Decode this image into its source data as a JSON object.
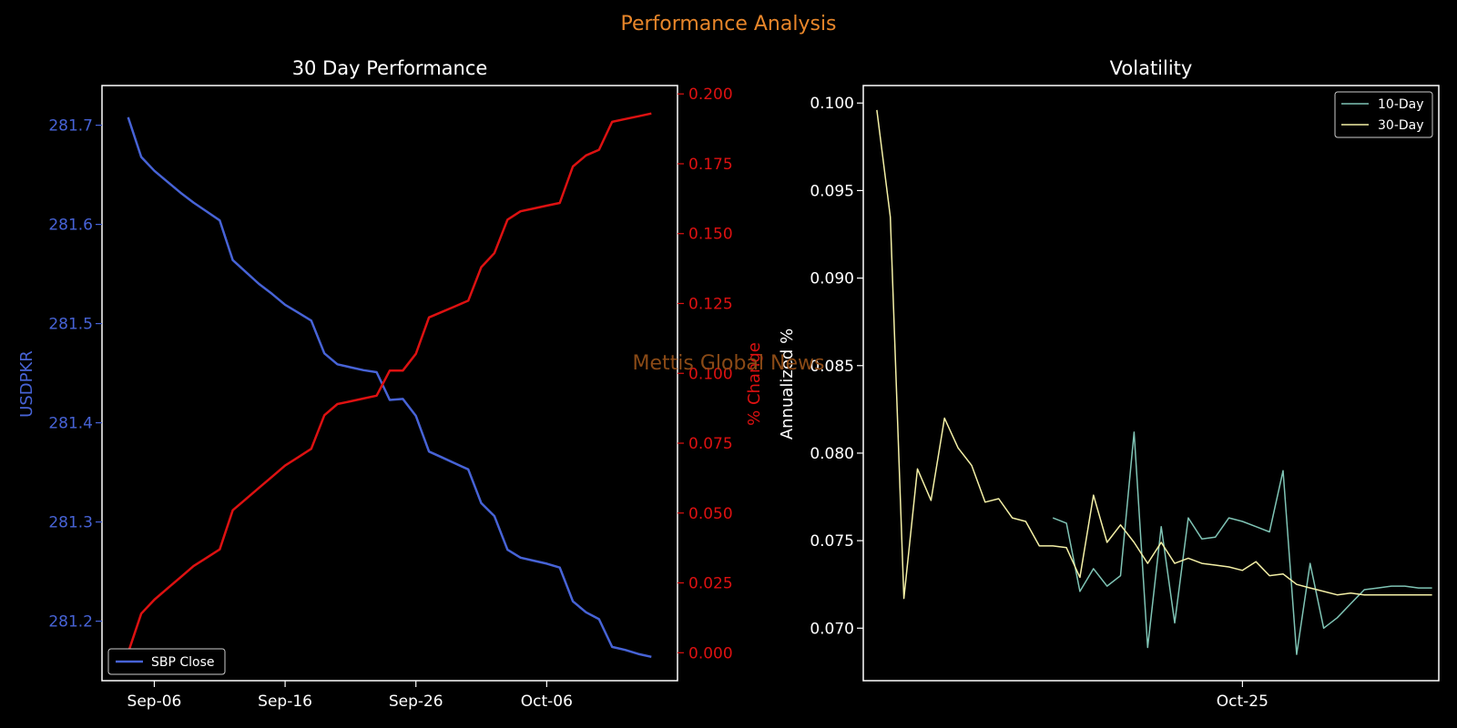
{
  "suptitle": "Performance Analysis",
  "watermark": "Mettis Global News",
  "colors": {
    "background": "#000000",
    "suptitle": "#e8862a",
    "watermark": "#8a4a16",
    "close_line": "#4763d6",
    "change_line": "#dd1111",
    "vol10": "#7fc4b5",
    "vol30": "#f4f0a6",
    "axis": "#ffffff"
  },
  "chart_data": [
    {
      "type": "line",
      "title": "30 Day Performance",
      "ylabel": "USDPKR",
      "ylabel_right": "% Change",
      "xticks": [
        {
          "label": "Sep-06",
          "day": 6
        },
        {
          "label": "Sep-16",
          "day": 16
        },
        {
          "label": "Sep-26",
          "day": 26
        },
        {
          "label": "Oct-06",
          "day": 36
        }
      ],
      "xlim": [
        2,
        46
      ],
      "ylim": [
        281.14,
        281.74
      ],
      "yticks": [
        "281.2",
        "281.3",
        "281.4",
        "281.5",
        "281.6",
        "281.7"
      ],
      "ylim_right": [
        -0.01,
        0.203
      ],
      "yticks_right": [
        "0.000",
        "0.025",
        "0.050",
        "0.075",
        "0.100",
        "0.125",
        "0.150",
        "0.175",
        "0.200"
      ],
      "legend": {
        "position": "lower-left",
        "entries": [
          "SBP Close"
        ]
      },
      "series": [
        {
          "name": "SBP Close",
          "axis": "left",
          "x": [
            4,
            5,
            6,
            7,
            8,
            9,
            10,
            11,
            12,
            13,
            14,
            15,
            16,
            17,
            18,
            19,
            20,
            21,
            22,
            23,
            24,
            25,
            26,
            27,
            28,
            29,
            30,
            31,
            32,
            33,
            34,
            35,
            36,
            37,
            38,
            39,
            40,
            41,
            42,
            43,
            44
          ],
          "values": [
            281.708,
            281.668,
            281.654,
            281.643,
            281.632,
            281.622,
            281.613,
            281.604,
            281.564,
            281.552,
            281.54,
            281.53,
            281.519,
            281.511,
            281.503,
            281.47,
            281.459,
            281.456,
            281.453,
            281.451,
            281.423,
            281.424,
            281.407,
            281.371,
            281.365,
            281.359,
            281.353,
            281.319,
            281.306,
            281.272,
            281.264,
            281.261,
            281.258,
            281.254,
            281.22,
            281.209,
            281.202,
            281.174,
            281.171,
            281.167,
            281.164
          ]
        },
        {
          "name": "% Change",
          "axis": "right",
          "x": [
            4,
            5,
            6,
            7,
            8,
            9,
            10,
            11,
            12,
            13,
            14,
            15,
            16,
            17,
            18,
            19,
            20,
            21,
            22,
            23,
            24,
            25,
            26,
            27,
            28,
            29,
            30,
            31,
            32,
            33,
            34,
            35,
            36,
            37,
            38,
            39,
            40,
            41,
            42,
            43,
            44
          ],
          "values": [
            0.0,
            0.014,
            0.019,
            0.023,
            0.027,
            0.031,
            0.034,
            0.037,
            0.051,
            0.055,
            0.059,
            0.063,
            0.067,
            0.07,
            0.073,
            0.085,
            0.089,
            0.09,
            0.091,
            0.092,
            0.101,
            0.101,
            0.107,
            0.12,
            0.122,
            0.124,
            0.126,
            0.138,
            0.143,
            0.155,
            0.158,
            0.159,
            0.16,
            0.161,
            0.174,
            0.178,
            0.18,
            0.19,
            0.191,
            0.192,
            0.193
          ]
        }
      ]
    },
    {
      "type": "line",
      "title": "Volatility",
      "ylabel": "Annualized %",
      "xticks": [
        {
          "label": "Oct-25",
          "index": 27
        }
      ],
      "xlim": [
        -1,
        41.5
      ],
      "ylim": [
        0.067,
        0.101
      ],
      "yticks": [
        "0.070",
        "0.075",
        "0.080",
        "0.085",
        "0.090",
        "0.095",
        "0.100"
      ],
      "legend": {
        "position": "top-right",
        "entries": [
          "10-Day",
          "30-Day"
        ]
      },
      "series": [
        {
          "name": "10-Day",
          "x": [
            13,
            14,
            15,
            16,
            17,
            18,
            19,
            20,
            21,
            22,
            23,
            24,
            25,
            26,
            27,
            28,
            29,
            30,
            31,
            32,
            33,
            34,
            35,
            36,
            37,
            38,
            39,
            40,
            41
          ],
          "values": [
            0.0763,
            0.076,
            0.0721,
            0.0734,
            0.0724,
            0.073,
            0.0812,
            0.0689,
            0.0758,
            0.0703,
            0.0763,
            0.0751,
            0.0752,
            0.0763,
            0.0761,
            0.0758,
            0.0755,
            0.079,
            0.0685,
            0.0737,
            0.07,
            0.0706,
            0.0714,
            0.0722,
            0.0723,
            0.0724,
            0.0724,
            0.0723,
            0.0723
          ]
        },
        {
          "name": "30-Day",
          "x": [
            0,
            1,
            2,
            3,
            4,
            5,
            6,
            7,
            8,
            9,
            10,
            11,
            12,
            13,
            14,
            15,
            16,
            17,
            18,
            19,
            20,
            21,
            22,
            23,
            24,
            25,
            26,
            27,
            28,
            29,
            30,
            31,
            32,
            33,
            34,
            35,
            36,
            37,
            38,
            39,
            40,
            41
          ],
          "values": [
            0.0996,
            0.0935,
            0.0717,
            0.0791,
            0.0773,
            0.082,
            0.0803,
            0.0793,
            0.0772,
            0.0774,
            0.0763,
            0.0761,
            0.0747,
            0.0747,
            0.0746,
            0.0729,
            0.0776,
            0.0749,
            0.0759,
            0.0749,
            0.0737,
            0.0749,
            0.0737,
            0.074,
            0.0737,
            0.0736,
            0.0735,
            0.0733,
            0.0738,
            0.073,
            0.0731,
            0.0725,
            0.0723,
            0.0721,
            0.0719,
            0.072,
            0.0719,
            0.0719,
            0.0719,
            0.0719,
            0.0719,
            0.0719
          ]
        }
      ]
    }
  ]
}
